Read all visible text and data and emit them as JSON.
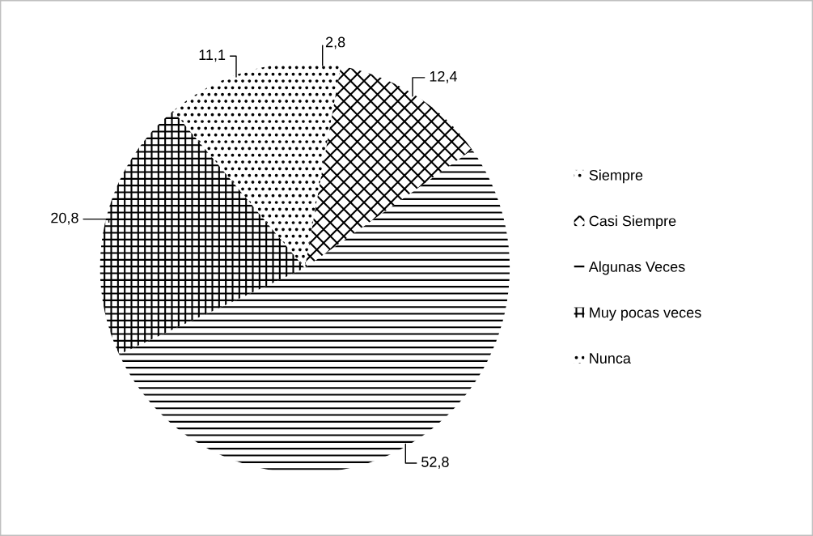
{
  "chart_data": {
    "type": "pie",
    "categories": [
      "Siempre",
      "Casi Siempre",
      "Algunas Veces",
      "Muy pocas veces",
      "Nunca"
    ],
    "values": [
      2.8,
      12.4,
      52.8,
      20.8,
      11.1
    ],
    "value_labels": [
      "2,8",
      "12,4",
      "52,8",
      "20,8",
      "11,1"
    ],
    "colors": [
      "#000000",
      "#000000",
      "#000000",
      "#000000",
      "#000000"
    ],
    "legend": "right"
  }
}
